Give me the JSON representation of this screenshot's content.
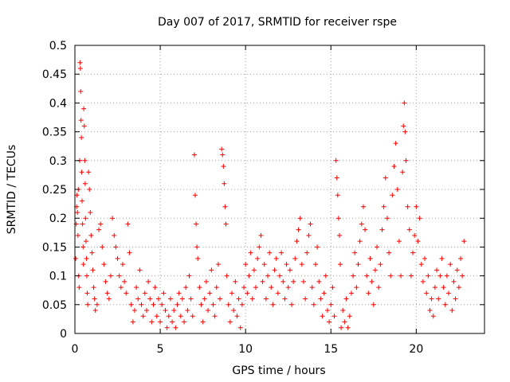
{
  "chart_data": {
    "type": "scatter",
    "title": "Day 007 of 2017, SRMTID for receiver rspe",
    "xlabel": "GPS time / hours",
    "ylabel": "SRMTID / TECUs",
    "xlim": [
      0,
      24
    ],
    "ylim": [
      0,
      0.5
    ],
    "x_ticks": [
      0,
      5,
      10,
      15,
      20
    ],
    "y_ticks": [
      0,
      0.05,
      0.1,
      0.15,
      0.2,
      0.25,
      0.3,
      0.35,
      0.4,
      0.45,
      0.5
    ],
    "x_tick_labels": [
      "0",
      "5",
      "10",
      "15",
      "20"
    ],
    "y_tick_labels": [
      "0",
      "0.05",
      "0.1",
      "0.15",
      "0.2",
      "0.25",
      "0.3",
      "0.35",
      "0.4",
      "0.45",
      "0.5"
    ],
    "grid": true,
    "marker": "+",
    "marker_color": "#ff0000",
    "series": [
      {
        "name": "SRMTID",
        "points": [
          [
            0.05,
            0.13
          ],
          [
            0.08,
            0.19
          ],
          [
            0.1,
            0.22
          ],
          [
            0.12,
            0.24
          ],
          [
            0.15,
            0.21
          ],
          [
            0.18,
            0.17
          ],
          [
            0.2,
            0.25
          ],
          [
            0.22,
            0.1
          ],
          [
            0.25,
            0.08
          ],
          [
            0.28,
            0.3
          ],
          [
            0.3,
            0.47
          ],
          [
            0.32,
            0.46
          ],
          [
            0.34,
            0.42
          ],
          [
            0.36,
            0.37
          ],
          [
            0.38,
            0.34
          ],
          [
            0.4,
            0.28
          ],
          [
            0.42,
            0.23
          ],
          [
            0.45,
            0.19
          ],
          [
            0.48,
            0.15
          ],
          [
            0.5,
            0.12
          ],
          [
            0.52,
            0.39
          ],
          [
            0.55,
            0.36
          ],
          [
            0.58,
            0.3
          ],
          [
            0.6,
            0.26
          ],
          [
            0.62,
            0.2
          ],
          [
            0.65,
            0.16
          ],
          [
            0.68,
            0.13
          ],
          [
            0.7,
            0.1
          ],
          [
            0.72,
            0.07
          ],
          [
            0.75,
            0.05
          ],
          [
            0.8,
            0.28
          ],
          [
            0.85,
            0.25
          ],
          [
            0.9,
            0.21
          ],
          [
            0.95,
            0.17
          ],
          [
            1.0,
            0.14
          ],
          [
            1.05,
            0.11
          ],
          [
            1.1,
            0.08
          ],
          [
            1.15,
            0.06
          ],
          [
            1.2,
            0.04
          ],
          [
            1.3,
            0.05
          ],
          [
            1.4,
            0.18
          ],
          [
            1.5,
            0.19
          ],
          [
            1.6,
            0.15
          ],
          [
            1.7,
            0.12
          ],
          [
            1.8,
            0.09
          ],
          [
            1.9,
            0.07
          ],
          [
            2.0,
            0.06
          ],
          [
            2.1,
            0.1
          ],
          [
            2.2,
            0.2
          ],
          [
            2.3,
            0.17
          ],
          [
            2.4,
            0.15
          ],
          [
            2.5,
            0.13
          ],
          [
            2.6,
            0.1
          ],
          [
            2.7,
            0.08
          ],
          [
            2.8,
            0.12
          ],
          [
            2.9,
            0.09
          ],
          [
            3.0,
            0.07
          ],
          [
            3.1,
            0.19
          ],
          [
            3.2,
            0.14
          ],
          [
            3.3,
            0.05
          ],
          [
            3.4,
            0.02
          ],
          [
            3.5,
            0.04
          ],
          [
            3.6,
            0.08
          ],
          [
            3.7,
            0.06
          ],
          [
            3.8,
            0.11
          ],
          [
            3.9,
            0.05
          ],
          [
            4.0,
            0.03
          ],
          [
            4.1,
            0.07
          ],
          [
            4.2,
            0.04
          ],
          [
            4.3,
            0.09
          ],
          [
            4.4,
            0.06
          ],
          [
            4.5,
            0.02
          ],
          [
            4.6,
            0.05
          ],
          [
            4.7,
            0.08
          ],
          [
            4.8,
            0.03
          ],
          [
            4.9,
            0.06
          ],
          [
            5.0,
            0.02
          ],
          [
            5.1,
            0.05
          ],
          [
            5.2,
            0.07
          ],
          [
            5.3,
            0.04
          ],
          [
            5.4,
            0.01
          ],
          [
            5.5,
            0.03
          ],
          [
            5.6,
            0.06
          ],
          [
            5.7,
            0.02
          ],
          [
            5.8,
            0.04
          ],
          [
            5.9,
            0.01
          ],
          [
            6.0,
            0.05
          ],
          [
            6.1,
            0.07
          ],
          [
            6.2,
            0.03
          ],
          [
            6.3,
            0.06
          ],
          [
            6.4,
            0.02
          ],
          [
            6.5,
            0.08
          ],
          [
            6.6,
            0.04
          ],
          [
            6.7,
            0.1
          ],
          [
            6.8,
            0.06
          ],
          [
            6.9,
            0.03
          ],
          [
            7.0,
            0.31
          ],
          [
            7.05,
            0.24
          ],
          [
            7.1,
            0.19
          ],
          [
            7.15,
            0.15
          ],
          [
            7.2,
            0.13
          ],
          [
            7.3,
            0.08
          ],
          [
            7.4,
            0.05
          ],
          [
            7.5,
            0.02
          ],
          [
            7.6,
            0.06
          ],
          [
            7.7,
            0.09
          ],
          [
            7.8,
            0.04
          ],
          [
            7.9,
            0.07
          ],
          [
            8.0,
            0.11
          ],
          [
            8.1,
            0.05
          ],
          [
            8.2,
            0.03
          ],
          [
            8.3,
            0.08
          ],
          [
            8.4,
            0.12
          ],
          [
            8.5,
            0.06
          ],
          [
            8.6,
            0.32
          ],
          [
            8.65,
            0.31
          ],
          [
            8.7,
            0.29
          ],
          [
            8.75,
            0.26
          ],
          [
            8.8,
            0.22
          ],
          [
            8.85,
            0.19
          ],
          [
            8.9,
            0.1
          ],
          [
            9.0,
            0.05
          ],
          [
            9.1,
            0.02
          ],
          [
            9.2,
            0.07
          ],
          [
            9.3,
            0.04
          ],
          [
            9.4,
            0.09
          ],
          [
            9.5,
            0.03
          ],
          [
            9.6,
            0.06
          ],
          [
            9.7,
            0.01
          ],
          [
            9.8,
            0.05
          ],
          [
            9.9,
            0.08
          ],
          [
            10.0,
            0.12
          ],
          [
            10.1,
            0.07
          ],
          [
            10.2,
            0.1
          ],
          [
            10.3,
            0.14
          ],
          [
            10.4,
            0.06
          ],
          [
            10.5,
            0.11
          ],
          [
            10.6,
            0.08
          ],
          [
            10.7,
            0.13
          ],
          [
            10.8,
            0.15
          ],
          [
            10.9,
            0.17
          ],
          [
            11.0,
            0.09
          ],
          [
            11.1,
            0.12
          ],
          [
            11.2,
            0.06
          ],
          [
            11.3,
            0.1
          ],
          [
            11.4,
            0.14
          ],
          [
            11.5,
            0.08
          ],
          [
            11.6,
            0.05
          ],
          [
            11.7,
            0.11
          ],
          [
            11.8,
            0.13
          ],
          [
            11.9,
            0.07
          ],
          [
            12.0,
            0.1
          ],
          [
            12.1,
            0.14
          ],
          [
            12.2,
            0.09
          ],
          [
            12.3,
            0.06
          ],
          [
            12.4,
            0.12
          ],
          [
            12.5,
            0.08
          ],
          [
            12.6,
            0.11
          ],
          [
            12.7,
            0.05
          ],
          [
            12.8,
            0.09
          ],
          [
            12.9,
            0.13
          ],
          [
            13.0,
            0.16
          ],
          [
            13.1,
            0.18
          ],
          [
            13.2,
            0.2
          ],
          [
            13.3,
            0.12
          ],
          [
            13.4,
            0.09
          ],
          [
            13.5,
            0.06
          ],
          [
            13.6,
            0.14
          ],
          [
            13.7,
            0.17
          ],
          [
            13.8,
            0.19
          ],
          [
            13.9,
            0.08
          ],
          [
            14.0,
            0.05
          ],
          [
            14.1,
            0.12
          ],
          [
            14.2,
            0.15
          ],
          [
            14.3,
            0.09
          ],
          [
            14.4,
            0.06
          ],
          [
            14.5,
            0.03
          ],
          [
            14.6,
            0.07
          ],
          [
            14.7,
            0.1
          ],
          [
            14.8,
            0.04
          ],
          [
            14.9,
            0.02
          ],
          [
            15.0,
            0.05
          ],
          [
            15.1,
            0.08
          ],
          [
            15.2,
            0.03
          ],
          [
            15.3,
            0.3
          ],
          [
            15.35,
            0.27
          ],
          [
            15.4,
            0.24
          ],
          [
            15.45,
            0.2
          ],
          [
            15.5,
            0.17
          ],
          [
            15.55,
            0.12
          ],
          [
            15.6,
            0.01
          ],
          [
            15.7,
            0.04
          ],
          [
            15.8,
            0.02
          ],
          [
            15.9,
            0.06
          ],
          [
            16.0,
            0.01
          ],
          [
            16.1,
            0.03
          ],
          [
            16.2,
            0.07
          ],
          [
            16.3,
            0.1
          ],
          [
            16.4,
            0.14
          ],
          [
            16.5,
            0.08
          ],
          [
            16.6,
            0.12
          ],
          [
            16.7,
            0.16
          ],
          [
            16.8,
            0.19
          ],
          [
            16.9,
            0.22
          ],
          [
            17.0,
            0.18
          ],
          [
            17.1,
            0.1
          ],
          [
            17.2,
            0.07
          ],
          [
            17.3,
            0.13
          ],
          [
            17.4,
            0.09
          ],
          [
            17.5,
            0.05
          ],
          [
            17.6,
            0.11
          ],
          [
            17.7,
            0.15
          ],
          [
            17.8,
            0.08
          ],
          [
            17.9,
            0.12
          ],
          [
            18.0,
            0.18
          ],
          [
            18.1,
            0.22
          ],
          [
            18.2,
            0.27
          ],
          [
            18.3,
            0.2
          ],
          [
            18.4,
            0.14
          ],
          [
            18.5,
            0.1
          ],
          [
            18.6,
            0.24
          ],
          [
            18.7,
            0.29
          ],
          [
            18.8,
            0.33
          ],
          [
            18.9,
            0.25
          ],
          [
            19.0,
            0.16
          ],
          [
            19.1,
            0.1
          ],
          [
            19.2,
            0.28
          ],
          [
            19.25,
            0.36
          ],
          [
            19.3,
            0.4
          ],
          [
            19.35,
            0.35
          ],
          [
            19.4,
            0.3
          ],
          [
            19.5,
            0.22
          ],
          [
            19.6,
            0.18
          ],
          [
            19.7,
            0.1
          ],
          [
            19.8,
            0.14
          ],
          [
            19.9,
            0.17
          ],
          [
            20.0,
            0.22
          ],
          [
            20.1,
            0.16
          ],
          [
            20.2,
            0.2
          ],
          [
            20.3,
            0.12
          ],
          [
            20.4,
            0.09
          ],
          [
            20.5,
            0.13
          ],
          [
            20.6,
            0.07
          ],
          [
            20.7,
            0.1
          ],
          [
            20.8,
            0.04
          ],
          [
            20.9,
            0.06
          ],
          [
            21.0,
            0.03
          ],
          [
            21.1,
            0.08
          ],
          [
            21.2,
            0.11
          ],
          [
            21.3,
            0.06
          ],
          [
            21.4,
            0.1
          ],
          [
            21.5,
            0.13
          ],
          [
            21.6,
            0.08
          ],
          [
            21.7,
            0.05
          ],
          [
            21.8,
            0.1
          ],
          [
            21.9,
            0.07
          ],
          [
            22.0,
            0.12
          ],
          [
            22.1,
            0.04
          ],
          [
            22.2,
            0.09
          ],
          [
            22.3,
            0.06
          ],
          [
            22.4,
            0.11
          ],
          [
            22.5,
            0.08
          ],
          [
            22.6,
            0.13
          ],
          [
            22.7,
            0.1
          ],
          [
            22.8,
            0.16
          ]
        ]
      }
    ]
  }
}
